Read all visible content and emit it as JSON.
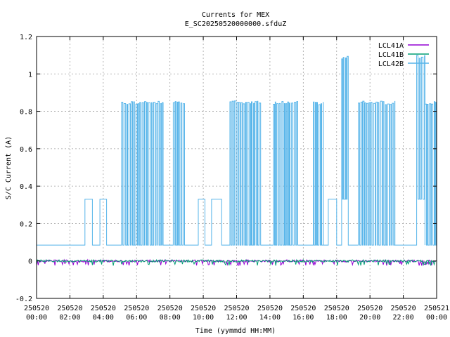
{
  "chart_data": {
    "type": "line",
    "title": "Currents for MEX",
    "subtitle": "E_SC20250520000000.sfduZ",
    "xlabel": "Time (yymmdd HH:MM)",
    "ylabel": "S/C Current (A)",
    "ylim": [
      -0.2,
      1.2
    ],
    "xlim_hours": [
      0,
      24
    ],
    "grid": true,
    "legend_position": "top-right",
    "y_ticks": [
      "-0.2",
      "0",
      "0.2",
      "0.4",
      "0.6",
      "0.8",
      "1",
      "1.2"
    ],
    "x_ticks": [
      {
        "date": "250520",
        "time": "00:00"
      },
      {
        "date": "250520",
        "time": "02:00"
      },
      {
        "date": "250520",
        "time": "04:00"
      },
      {
        "date": "250520",
        "time": "06:00"
      },
      {
        "date": "250520",
        "time": "08:00"
      },
      {
        "date": "250520",
        "time": "10:00"
      },
      {
        "date": "250520",
        "time": "12:00"
      },
      {
        "date": "250520",
        "time": "14:00"
      },
      {
        "date": "250520",
        "time": "16:00"
      },
      {
        "date": "250520",
        "time": "18:00"
      },
      {
        "date": "250520",
        "time": "20:00"
      },
      {
        "date": "250520",
        "time": "22:00"
      },
      {
        "date": "250521",
        "time": "00:00"
      }
    ],
    "series": [
      {
        "name": "LCL41A",
        "color": "#9400d3",
        "baseline": 0.0,
        "note_values": "near zero throughout with small spikes"
      },
      {
        "name": "LCL41B",
        "color": "#009e73",
        "baseline": 0.0
      },
      {
        "name": "LCL42B",
        "color": "#56b4e9",
        "baseline": 0.085,
        "segments": [
          {
            "start": 0.0,
            "end": 2.9,
            "low": 0.085,
            "high": 0.085
          },
          {
            "start": 2.9,
            "end": 3.35,
            "low": 0.33,
            "high": 0.33
          },
          {
            "start": 3.35,
            "end": 3.8,
            "low": 0.085,
            "high": 0.085
          },
          {
            "start": 3.8,
            "end": 4.2,
            "low": 0.33,
            "high": 0.33
          },
          {
            "start": 4.2,
            "end": 5.1,
            "low": 0.085,
            "high": 0.085
          },
          {
            "start": 5.1,
            "end": 7.6,
            "low": 0.085,
            "high": 0.855
          },
          {
            "start": 7.6,
            "end": 8.2,
            "low": 0.085,
            "high": 0.085
          },
          {
            "start": 8.2,
            "end": 8.9,
            "low": 0.085,
            "high": 0.855
          },
          {
            "start": 8.9,
            "end": 9.7,
            "low": 0.085,
            "high": 0.085
          },
          {
            "start": 9.7,
            "end": 10.1,
            "low": 0.33,
            "high": 0.33
          },
          {
            "start": 10.1,
            "end": 10.5,
            "low": 0.085,
            "high": 0.085
          },
          {
            "start": 10.5,
            "end": 11.1,
            "low": 0.33,
            "high": 0.33
          },
          {
            "start": 11.1,
            "end": 11.6,
            "low": 0.085,
            "high": 0.085
          },
          {
            "start": 11.6,
            "end": 13.5,
            "low": 0.085,
            "high": 0.86
          },
          {
            "start": 13.5,
            "end": 14.2,
            "low": 0.085,
            "high": 0.085
          },
          {
            "start": 14.2,
            "end": 15.7,
            "low": 0.085,
            "high": 0.855
          },
          {
            "start": 15.7,
            "end": 16.6,
            "low": 0.085,
            "high": 0.085
          },
          {
            "start": 16.6,
            "end": 17.2,
            "low": 0.085,
            "high": 0.85
          },
          {
            "start": 17.2,
            "end": 17.5,
            "low": 0.085,
            "high": 0.085
          },
          {
            "start": 17.5,
            "end": 18.0,
            "low": 0.33,
            "high": 0.33
          },
          {
            "start": 18.0,
            "end": 18.3,
            "low": 0.085,
            "high": 0.085
          },
          {
            "start": 18.3,
            "end": 18.7,
            "low": 0.33,
            "high": 1.1
          },
          {
            "start": 18.7,
            "end": 19.3,
            "low": 0.085,
            "high": 0.085
          },
          {
            "start": 19.3,
            "end": 21.5,
            "low": 0.085,
            "high": 0.855
          },
          {
            "start": 21.5,
            "end": 22.8,
            "low": 0.085,
            "high": 0.085
          },
          {
            "start": 22.8,
            "end": 23.3,
            "low": 0.33,
            "high": 1.1
          },
          {
            "start": 23.3,
            "end": 24.0,
            "low": 0.085,
            "high": 0.855
          }
        ]
      }
    ]
  }
}
